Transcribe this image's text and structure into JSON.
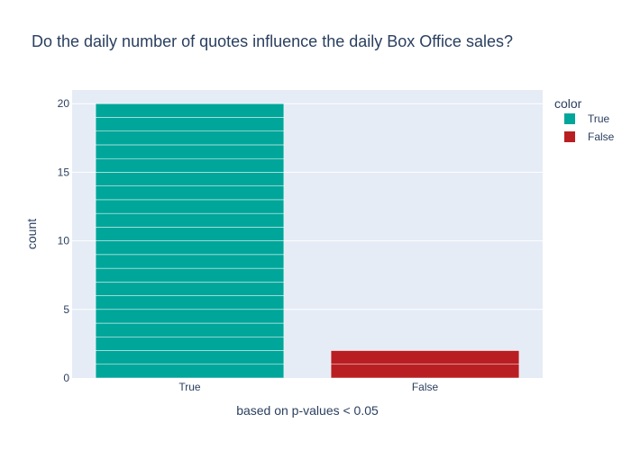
{
  "chart_data": {
    "type": "bar",
    "title": "Do the daily number of quotes influence the daily Box Office sales?",
    "xlabel": "based on p-values < 0.05",
    "ylabel": "count",
    "categories": [
      "True",
      "False"
    ],
    "values": [
      20,
      2
    ],
    "ylim": [
      0,
      21
    ],
    "yticks": [
      0,
      5,
      10,
      15,
      20
    ],
    "grid": true,
    "stacked_unit_segments": true,
    "legend": {
      "title": "color",
      "position": "right",
      "entries": [
        {
          "label": "True",
          "color": "#00a69a"
        },
        {
          "label": "False",
          "color": "#b91f22"
        }
      ]
    },
    "colors": {
      "True": "#00a69a",
      "False": "#b91f22",
      "plot_bg": "#e5ecf6",
      "grid": "#ffffff"
    }
  }
}
